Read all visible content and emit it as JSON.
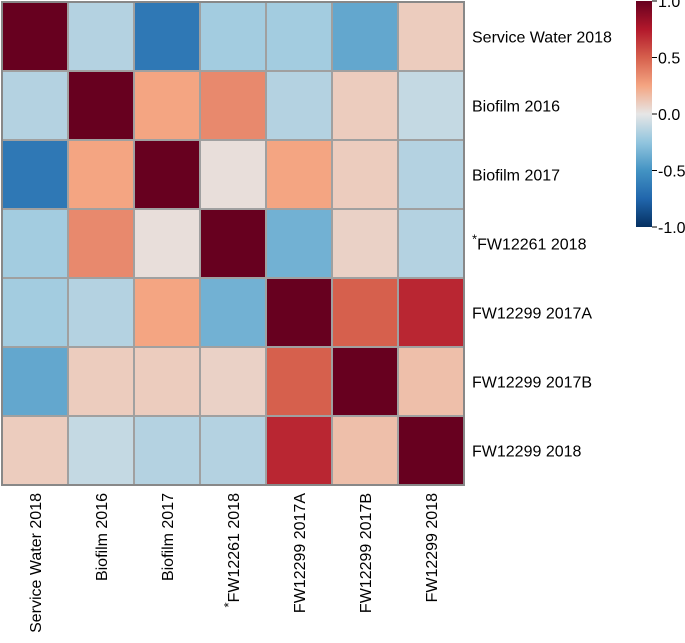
{
  "chart_data": {
    "type": "heatmap",
    "title": "",
    "row_labels": [
      {
        "text": "Service Water 2018"
      },
      {
        "text": "Biofilm 2016"
      },
      {
        "text": "Biofilm 2017"
      },
      {
        "text": "FW12261 2018",
        "prefix": "*"
      },
      {
        "text": "FW12299 2017A"
      },
      {
        "text": "FW12299 2017B"
      },
      {
        "text": "FW12299 2018"
      }
    ],
    "col_labels": [
      {
        "text": "Service Water 2018"
      },
      {
        "text": "Biofilm 2016"
      },
      {
        "text": "Biofilm 2017"
      },
      {
        "text": "FW12261 2018",
        "prefix": "*"
      },
      {
        "text": "FW12299 2017A"
      },
      {
        "text": "FW12299 2017B"
      },
      {
        "text": "FW12299 2018"
      }
    ],
    "values": [
      [
        1.0,
        -0.15,
        -0.65,
        -0.2,
        -0.2,
        -0.4,
        0.1
      ],
      [
        -0.15,
        1.0,
        0.25,
        0.35,
        -0.15,
        0.1,
        -0.1
      ],
      [
        -0.65,
        0.25,
        1.0,
        0.03,
        0.25,
        0.1,
        -0.15
      ],
      [
        -0.2,
        0.35,
        0.03,
        1.0,
        -0.35,
        0.08,
        -0.15
      ],
      [
        -0.2,
        -0.15,
        0.25,
        -0.35,
        1.0,
        0.5,
        0.7
      ],
      [
        -0.4,
        0.1,
        0.1,
        0.08,
        0.5,
        1.0,
        0.15
      ],
      [
        0.1,
        -0.1,
        -0.15,
        -0.15,
        0.7,
        0.15,
        1.0
      ]
    ],
    "colorbar": {
      "range": [
        -1.0,
        1.0
      ],
      "ticks": [
        {
          "value": 1.0,
          "label": "1.0"
        },
        {
          "value": 0.5,
          "label": "0.5"
        },
        {
          "value": 0.0,
          "label": "0.0"
        },
        {
          "value": -0.5,
          "label": "-0.5"
        },
        {
          "value": -1.0,
          "label": "-1.0"
        }
      ],
      "colormap": "RdBu_r"
    },
    "colors": {
      "cell_border": "#a0a0a0",
      "frame": "#888888"
    }
  }
}
